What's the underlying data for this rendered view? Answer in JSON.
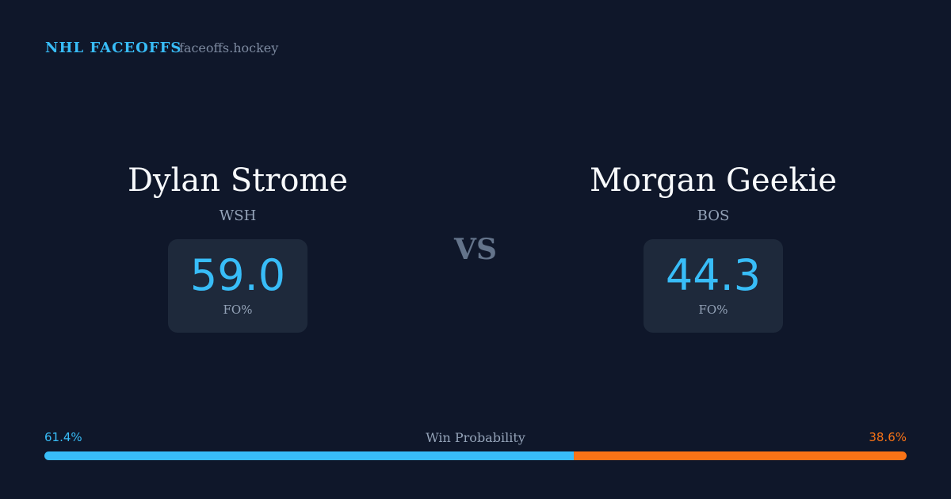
{
  "header": {
    "brand": "NHL FACEOFFS",
    "site": "faceoffs.hockey"
  },
  "players": [
    {
      "name": "Dylan Strome",
      "team": "WSH",
      "fo_value": "59.0",
      "fo_label": "FO%"
    },
    {
      "name": "Morgan Geekie",
      "team": "BOS",
      "fo_value": "44.3",
      "fo_label": "FO%"
    }
  ],
  "vs": "VS",
  "win_probability": {
    "title": "Win Probability",
    "segments": [
      {
        "value": 61.4,
        "label": "61.4%",
        "color": "#38bdf8"
      },
      {
        "value": 38.6,
        "label": "38.6%",
        "color": "#f97316"
      }
    ]
  }
}
